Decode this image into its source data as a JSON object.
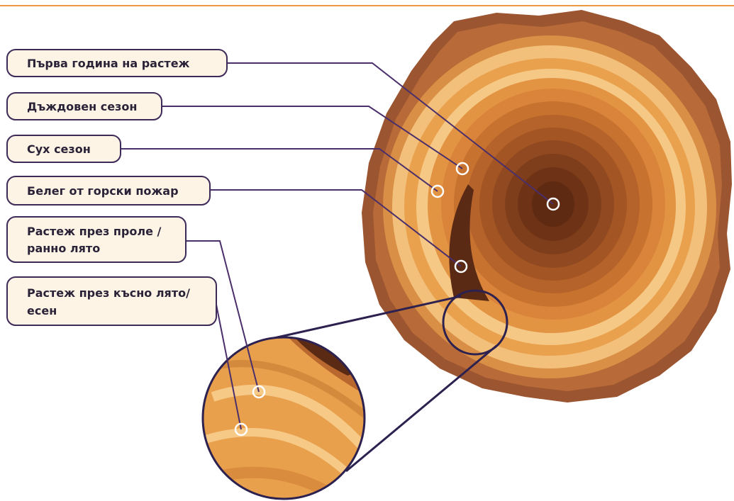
{
  "labels": [
    {
      "lines": [
        "Първа година на растеж"
      ]
    },
    {
      "lines": [
        "Дъждовен сезон"
      ]
    },
    {
      "lines": [
        "Сух сезон"
      ]
    },
    {
      "lines": [
        "Белег от горски пожар"
      ]
    },
    {
      "lines": [
        "Растеж през проле /",
        "ранно лято"
      ]
    },
    {
      "lines": [
        "Растеж през късно лято/",
        "есен"
      ]
    }
  ]
}
